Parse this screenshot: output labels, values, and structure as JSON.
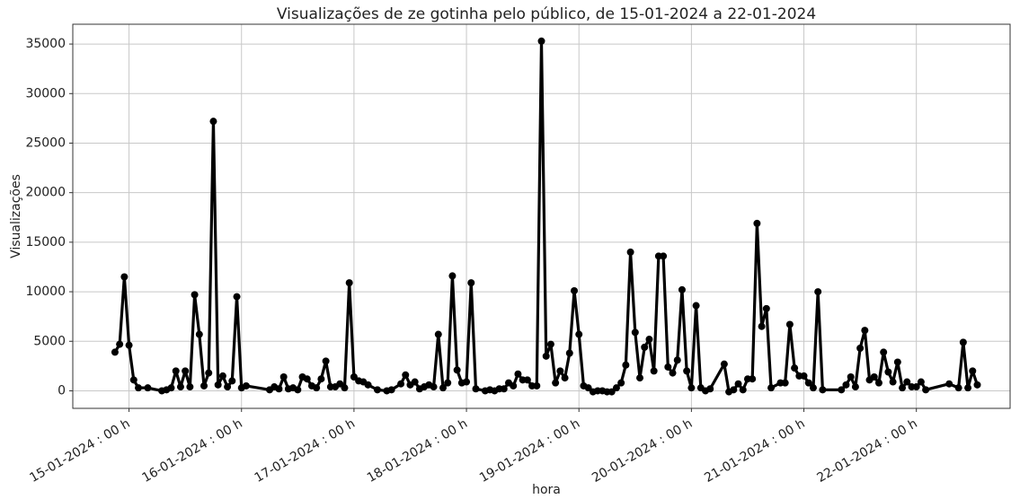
{
  "chart_data": {
    "type": "line",
    "title": "Visualizações de ze gotinha pelo público, de 15-01-2024 a 22-01-2024",
    "xlabel": "hora",
    "ylabel": "Visualizações",
    "color": "#000000",
    "grid": true,
    "x": [
      "2024-01-14T21:00",
      "2024-01-14T22:00",
      "2024-01-14T23:00",
      "2024-01-15T00:00",
      "2024-01-15T01:00",
      "2024-01-15T02:00",
      "2024-01-15T04:00",
      "2024-01-15T07:00",
      "2024-01-15T08:00",
      "2024-01-15T09:00",
      "2024-01-15T10:00",
      "2024-01-15T11:00",
      "2024-01-15T12:00",
      "2024-01-15T13:00",
      "2024-01-15T14:00",
      "2024-01-15T15:00",
      "2024-01-15T16:00",
      "2024-01-15T17:00",
      "2024-01-15T18:00",
      "2024-01-15T19:00",
      "2024-01-15T20:00",
      "2024-01-15T21:00",
      "2024-01-15T22:00",
      "2024-01-15T23:00",
      "2024-01-16T00:00",
      "2024-01-16T01:00",
      "2024-01-16T06:00",
      "2024-01-16T07:00",
      "2024-01-16T08:00",
      "2024-01-16T09:00",
      "2024-01-16T10:00",
      "2024-01-16T11:00",
      "2024-01-16T12:00",
      "2024-01-16T13:00",
      "2024-01-16T14:00",
      "2024-01-16T15:00",
      "2024-01-16T16:00",
      "2024-01-16T17:00",
      "2024-01-16T18:00",
      "2024-01-16T19:00",
      "2024-01-16T20:00",
      "2024-01-16T21:00",
      "2024-01-16T22:00",
      "2024-01-16T23:00",
      "2024-01-17T00:00",
      "2024-01-17T01:00",
      "2024-01-17T02:00",
      "2024-01-17T03:00",
      "2024-01-17T05:00",
      "2024-01-17T07:00",
      "2024-01-17T08:00",
      "2024-01-17T10:00",
      "2024-01-17T11:00",
      "2024-01-17T12:00",
      "2024-01-17T13:00",
      "2024-01-17T14:00",
      "2024-01-17T15:00",
      "2024-01-17T16:00",
      "2024-01-17T17:00",
      "2024-01-17T18:00",
      "2024-01-17T19:00",
      "2024-01-17T20:00",
      "2024-01-17T21:00",
      "2024-01-17T22:00",
      "2024-01-17T23:00",
      "2024-01-18T00:00",
      "2024-01-18T01:00",
      "2024-01-18T02:00",
      "2024-01-18T04:00",
      "2024-01-18T05:00",
      "2024-01-18T06:00",
      "2024-01-18T07:00",
      "2024-01-18T08:00",
      "2024-01-18T09:00",
      "2024-01-18T10:00",
      "2024-01-18T11:00",
      "2024-01-18T12:00",
      "2024-01-18T13:00",
      "2024-01-18T14:00",
      "2024-01-18T15:00",
      "2024-01-18T16:00",
      "2024-01-18T17:00",
      "2024-01-18T18:00",
      "2024-01-18T19:00",
      "2024-01-18T20:00",
      "2024-01-18T21:00",
      "2024-01-18T22:00",
      "2024-01-18T23:00",
      "2024-01-19T00:00",
      "2024-01-19T01:00",
      "2024-01-19T02:00",
      "2024-01-19T03:00",
      "2024-01-19T04:00",
      "2024-01-19T05:00",
      "2024-01-19T06:00",
      "2024-01-19T07:00",
      "2024-01-19T08:00",
      "2024-01-19T09:00",
      "2024-01-19T10:00",
      "2024-01-19T11:00",
      "2024-01-19T12:00",
      "2024-01-19T13:00",
      "2024-01-19T14:00",
      "2024-01-19T15:00",
      "2024-01-19T16:00",
      "2024-01-19T17:00",
      "2024-01-19T18:00",
      "2024-01-19T19:00",
      "2024-01-19T20:00",
      "2024-01-19T21:00",
      "2024-01-19T22:00",
      "2024-01-19T23:00",
      "2024-01-20T00:00",
      "2024-01-20T01:00",
      "2024-01-20T02:00",
      "2024-01-20T03:00",
      "2024-01-20T04:00",
      "2024-01-20T07:00",
      "2024-01-20T08:00",
      "2024-01-20T09:00",
      "2024-01-20T10:00",
      "2024-01-20T11:00",
      "2024-01-20T12:00",
      "2024-01-20T13:00",
      "2024-01-20T14:00",
      "2024-01-20T15:00",
      "2024-01-20T16:00",
      "2024-01-20T17:00",
      "2024-01-20T19:00",
      "2024-01-20T20:00",
      "2024-01-20T21:00",
      "2024-01-20T22:00",
      "2024-01-20T23:00",
      "2024-01-21T00:00",
      "2024-01-21T01:00",
      "2024-01-21T02:00",
      "2024-01-21T03:00",
      "2024-01-21T04:00",
      "2024-01-21T08:00",
      "2024-01-21T09:00",
      "2024-01-21T10:00",
      "2024-01-21T11:00",
      "2024-01-21T12:00",
      "2024-01-21T13:00",
      "2024-01-21T14:00",
      "2024-01-21T15:00",
      "2024-01-21T16:00",
      "2024-01-21T17:00",
      "2024-01-21T18:00",
      "2024-01-21T19:00",
      "2024-01-21T20:00",
      "2024-01-21T21:00",
      "2024-01-21T22:00",
      "2024-01-21T23:00",
      "2024-01-22T00:00",
      "2024-01-22T01:00",
      "2024-01-22T02:00",
      "2024-01-22T07:00",
      "2024-01-22T09:00",
      "2024-01-22T10:00",
      "2024-01-22T11:00",
      "2024-01-22T12:00",
      "2024-01-22T13:00"
    ],
    "values": [
      3900,
      4700,
      11500,
      4600,
      1100,
      300,
      300,
      0,
      100,
      300,
      2000,
      400,
      2000,
      400,
      9700,
      5700,
      500,
      1800,
      27200,
      600,
      1500,
      400,
      1000,
      9500,
      300,
      500,
      100,
      400,
      200,
      1400,
      200,
      300,
      100,
      1400,
      1200,
      500,
      300,
      1200,
      3000,
      400,
      400,
      700,
      300,
      10900,
      1400,
      1000,
      900,
      600,
      100,
      0,
      100,
      700,
      1600,
      600,
      900,
      200,
      400,
      600,
      400,
      5700,
      300,
      800,
      11600,
      2100,
      800,
      900,
      10900,
      200,
      0,
      100,
      0,
      200,
      200,
      800,
      500,
      1700,
      1100,
      1100,
      500,
      500,
      35300,
      3500,
      4700,
      800,
      2000,
      1300,
      3800,
      10100,
      5700,
      500,
      300,
      -100,
      0,
      0,
      -100,
      -100,
      300,
      800,
      2600,
      14000,
      5900,
      1300,
      4400,
      5200,
      2000,
      13600,
      13600,
      2400,
      1800,
      3100,
      10200,
      2000,
      300,
      8600,
      300,
      0,
      200,
      2700,
      -100,
      100,
      700,
      100,
      1200,
      1200,
      16900,
      6500,
      8300,
      300,
      800,
      800,
      6700,
      2300,
      1500,
      1500,
      800,
      300,
      10000,
      100,
      100,
      600,
      1400,
      400,
      4300,
      6100,
      1100,
      1400,
      800,
      3900,
      1900,
      900,
      2900,
      300,
      900,
      400,
      400,
      900,
      100,
      700,
      300,
      4900,
      300,
      2000,
      600
    ],
    "xlim": [
      "2024-01-14T12:00",
      "2024-01-22T20:00"
    ],
    "xticks": [
      {
        "value": "2024-01-15T00:00",
        "label": "15-01-2024 : 00 h"
      },
      {
        "value": "2024-01-16T00:00",
        "label": "16-01-2024 : 00 h"
      },
      {
        "value": "2024-01-17T00:00",
        "label": "17-01-2024 : 00 h"
      },
      {
        "value": "2024-01-18T00:00",
        "label": "18-01-2024 : 00 h"
      },
      {
        "value": "2024-01-19T00:00",
        "label": "19-01-2024 : 00 h"
      },
      {
        "value": "2024-01-20T00:00",
        "label": "20-01-2024 : 00 h"
      },
      {
        "value": "2024-01-21T00:00",
        "label": "21-01-2024 : 00 h"
      },
      {
        "value": "2024-01-22T00:00",
        "label": "22-01-2024 : 00 h"
      }
    ],
    "ylim": [
      -1770,
      37000
    ],
    "yticks": [
      0,
      5000,
      10000,
      15000,
      20000,
      25000,
      30000,
      35000
    ]
  }
}
